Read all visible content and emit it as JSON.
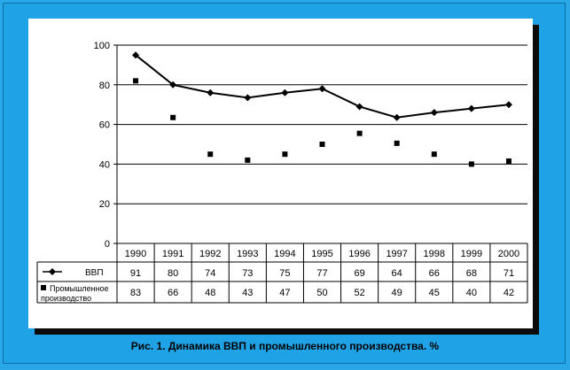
{
  "caption": "Рис. 1. Динамика ВВП и промышленного производства. %",
  "chart_data": {
    "type": "line",
    "categories": [
      "1990",
      "1991",
      "1992",
      "1993",
      "1994",
      "1995",
      "1996",
      "1997",
      "1998",
      "1999",
      "2000"
    ],
    "series": [
      {
        "name": "ВВП",
        "values": [
          91,
          80,
          74,
          73,
          75,
          77,
          69,
          64,
          66,
          68,
          71
        ],
        "style": "line-diamond",
        "color": "#000000"
      },
      {
        "name": "Промышленное производство",
        "values": [
          83,
          66,
          48,
          43,
          47,
          50,
          52,
          49,
          45,
          40,
          42
        ],
        "style": "markers-square",
        "color": "#000000"
      }
    ],
    "plotted_series": [
      [
        95,
        80,
        76,
        73.5,
        76,
        78,
        69,
        63.5,
        66,
        68,
        70
      ],
      [
        82,
        63.5,
        45,
        42,
        45,
        50,
        55.5,
        50.5,
        45,
        40,
        41.5
      ]
    ],
    "ylim": [
      0,
      100
    ],
    "yticks": [
      0,
      20,
      40,
      60,
      80,
      100
    ],
    "grid": true,
    "legend": "data-table-below"
  }
}
